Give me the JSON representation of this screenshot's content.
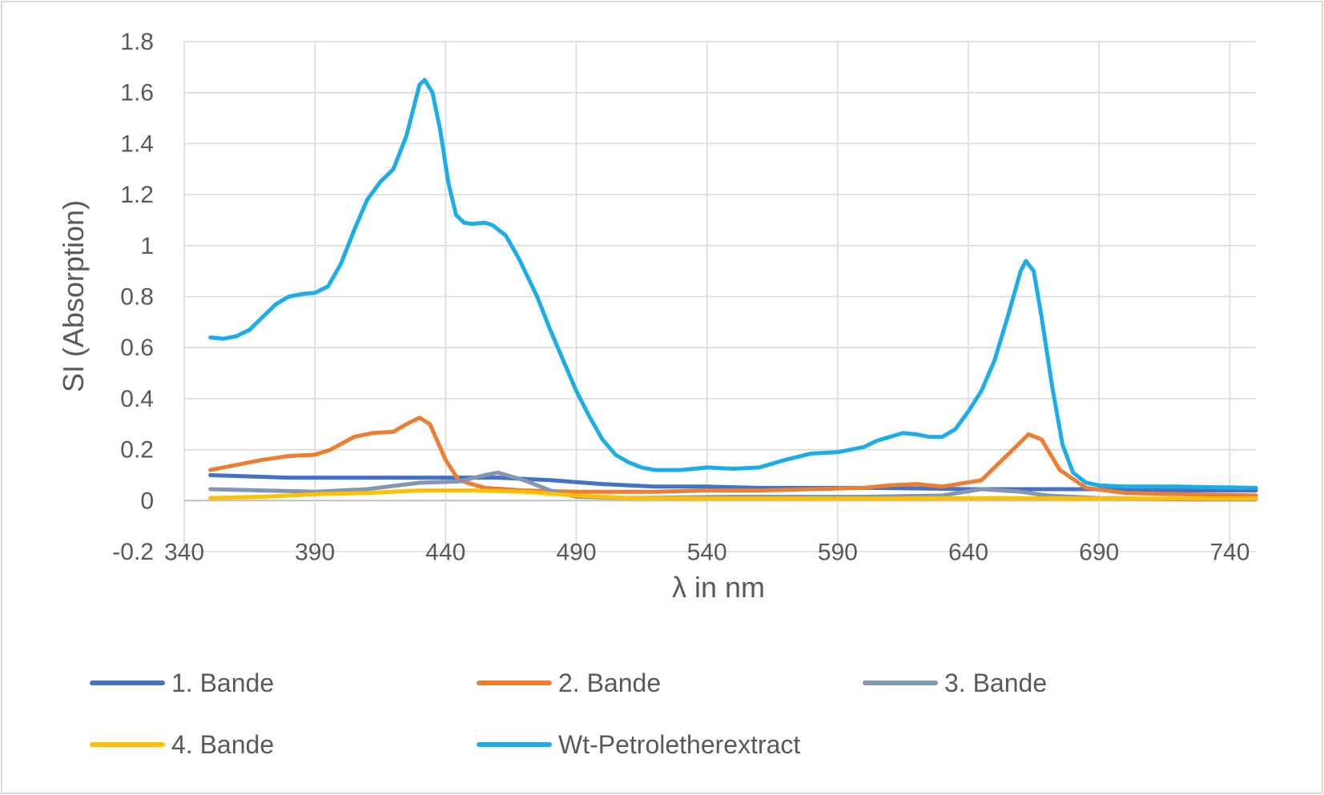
{
  "chart_data": {
    "type": "line",
    "xlabel": "λ in nm",
    "ylabel": "SI (Absorption)",
    "xlim": [
      340,
      750
    ],
    "ylim": [
      -0.2,
      1.8
    ],
    "x_ticks": [
      340,
      390,
      440,
      490,
      540,
      590,
      640,
      690,
      740
    ],
    "x_tick_labels": [
      "340",
      "390",
      "440",
      "490",
      "540",
      "590",
      "640",
      "690",
      "740"
    ],
    "y_ticks": [
      -0.2,
      0,
      0.2,
      0.4,
      0.6,
      0.8,
      1,
      1.2,
      1.4,
      1.6,
      1.8
    ],
    "y_tick_labels": [
      "-0.2",
      "0",
      "0.2",
      "0.4",
      "0.6",
      "0.8",
      "1",
      "1.2",
      "1.4",
      "1.6",
      "1.8"
    ],
    "grid": true,
    "legend_position": "bottom",
    "series": [
      {
        "name": "1. Bande",
        "color": "#4472C4",
        "points": [
          [
            350,
            0.1
          ],
          [
            380,
            0.09
          ],
          [
            400,
            0.09
          ],
          [
            420,
            0.09
          ],
          [
            440,
            0.09
          ],
          [
            460,
            0.09
          ],
          [
            480,
            0.08
          ],
          [
            500,
            0.065
          ],
          [
            520,
            0.055
          ],
          [
            540,
            0.055
          ],
          [
            560,
            0.05
          ],
          [
            580,
            0.05
          ],
          [
            600,
            0.05
          ],
          [
            620,
            0.048
          ],
          [
            640,
            0.045
          ],
          [
            660,
            0.045
          ],
          [
            680,
            0.045
          ],
          [
            700,
            0.045
          ],
          [
            720,
            0.04
          ],
          [
            750,
            0.04
          ]
        ]
      },
      {
        "name": "2. Bande",
        "color": "#ED7D31",
        "points": [
          [
            350,
            0.12
          ],
          [
            360,
            0.14
          ],
          [
            370,
            0.16
          ],
          [
            380,
            0.175
          ],
          [
            390,
            0.18
          ],
          [
            396,
            0.2
          ],
          [
            405,
            0.25
          ],
          [
            412,
            0.265
          ],
          [
            420,
            0.27
          ],
          [
            425,
            0.3
          ],
          [
            430,
            0.325
          ],
          [
            434,
            0.3
          ],
          [
            440,
            0.16
          ],
          [
            445,
            0.08
          ],
          [
            455,
            0.05
          ],
          [
            470,
            0.04
          ],
          [
            490,
            0.035
          ],
          [
            520,
            0.035
          ],
          [
            540,
            0.04
          ],
          [
            560,
            0.04
          ],
          [
            580,
            0.045
          ],
          [
            600,
            0.05
          ],
          [
            610,
            0.06
          ],
          [
            620,
            0.065
          ],
          [
            630,
            0.055
          ],
          [
            645,
            0.08
          ],
          [
            655,
            0.18
          ],
          [
            663,
            0.26
          ],
          [
            668,
            0.24
          ],
          [
            675,
            0.12
          ],
          [
            685,
            0.05
          ],
          [
            700,
            0.03
          ],
          [
            720,
            0.025
          ],
          [
            750,
            0.02
          ]
        ]
      },
      {
        "name": "3. Bande",
        "color": "#8497B0",
        "points": [
          [
            350,
            0.045
          ],
          [
            370,
            0.04
          ],
          [
            390,
            0.035
          ],
          [
            410,
            0.045
          ],
          [
            430,
            0.07
          ],
          [
            445,
            0.075
          ],
          [
            455,
            0.1
          ],
          [
            460,
            0.11
          ],
          [
            470,
            0.08
          ],
          [
            480,
            0.04
          ],
          [
            490,
            0.015
          ],
          [
            510,
            0.01
          ],
          [
            550,
            0.015
          ],
          [
            600,
            0.015
          ],
          [
            630,
            0.02
          ],
          [
            645,
            0.045
          ],
          [
            660,
            0.035
          ],
          [
            670,
            0.02
          ],
          [
            690,
            0.01
          ],
          [
            720,
            0.005
          ],
          [
            750,
            0.005
          ]
        ]
      },
      {
        "name": "4. Bande",
        "color": "#FFC000",
        "points": [
          [
            350,
            0.01
          ],
          [
            370,
            0.015
          ],
          [
            390,
            0.025
          ],
          [
            410,
            0.03
          ],
          [
            430,
            0.04
          ],
          [
            450,
            0.04
          ],
          [
            470,
            0.035
          ],
          [
            490,
            0.02
          ],
          [
            510,
            0.01
          ],
          [
            550,
            0.008
          ],
          [
            600,
            0.008
          ],
          [
            650,
            0.01
          ],
          [
            700,
            0.008
          ],
          [
            750,
            0.008
          ]
        ]
      },
      {
        "name": "Wt-Petroletherextract",
        "color": "#1BADE9",
        "points": [
          [
            350,
            0.64
          ],
          [
            355,
            0.635
          ],
          [
            360,
            0.645
          ],
          [
            365,
            0.67
          ],
          [
            370,
            0.72
          ],
          [
            375,
            0.77
          ],
          [
            380,
            0.8
          ],
          [
            385,
            0.81
          ],
          [
            390,
            0.815
          ],
          [
            395,
            0.84
          ],
          [
            400,
            0.93
          ],
          [
            405,
            1.06
          ],
          [
            410,
            1.18
          ],
          [
            415,
            1.25
          ],
          [
            420,
            1.3
          ],
          [
            425,
            1.43
          ],
          [
            430,
            1.63
          ],
          [
            432,
            1.65
          ],
          [
            435,
            1.6
          ],
          [
            438,
            1.45
          ],
          [
            441,
            1.25
          ],
          [
            444,
            1.12
          ],
          [
            447,
            1.09
          ],
          [
            450,
            1.085
          ],
          [
            455,
            1.09
          ],
          [
            458,
            1.08
          ],
          [
            463,
            1.04
          ],
          [
            468,
            0.95
          ],
          [
            475,
            0.8
          ],
          [
            480,
            0.67
          ],
          [
            485,
            0.55
          ],
          [
            490,
            0.43
          ],
          [
            495,
            0.33
          ],
          [
            500,
            0.24
          ],
          [
            505,
            0.18
          ],
          [
            510,
            0.15
          ],
          [
            515,
            0.13
          ],
          [
            520,
            0.12
          ],
          [
            530,
            0.12
          ],
          [
            540,
            0.13
          ],
          [
            550,
            0.125
          ],
          [
            560,
            0.13
          ],
          [
            570,
            0.16
          ],
          [
            580,
            0.185
          ],
          [
            590,
            0.19
          ],
          [
            600,
            0.21
          ],
          [
            605,
            0.235
          ],
          [
            610,
            0.25
          ],
          [
            615,
            0.265
          ],
          [
            620,
            0.26
          ],
          [
            625,
            0.25
          ],
          [
            630,
            0.25
          ],
          [
            635,
            0.28
          ],
          [
            640,
            0.35
          ],
          [
            645,
            0.43
          ],
          [
            650,
            0.55
          ],
          [
            655,
            0.72
          ],
          [
            660,
            0.9
          ],
          [
            662,
            0.94
          ],
          [
            665,
            0.9
          ],
          [
            668,
            0.72
          ],
          [
            672,
            0.45
          ],
          [
            676,
            0.22
          ],
          [
            680,
            0.11
          ],
          [
            685,
            0.07
          ],
          [
            690,
            0.06
          ],
          [
            700,
            0.055
          ],
          [
            720,
            0.055
          ],
          [
            750,
            0.05
          ]
        ]
      }
    ]
  }
}
